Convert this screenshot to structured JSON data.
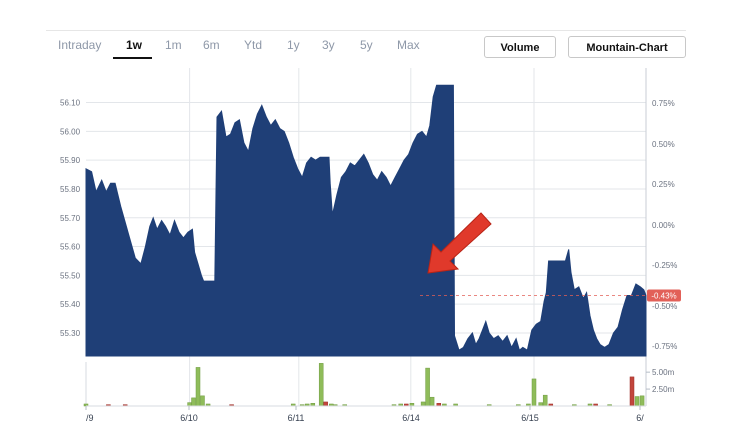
{
  "tabs": [
    {
      "label": "Intraday",
      "active": false
    },
    {
      "label": "1w",
      "active": true
    },
    {
      "label": "1m",
      "active": false
    },
    {
      "label": "6m",
      "active": false
    },
    {
      "label": "Ytd",
      "active": false
    },
    {
      "label": "1y",
      "active": false
    },
    {
      "label": "3y",
      "active": false
    },
    {
      "label": "5y",
      "active": false
    },
    {
      "label": "Max",
      "active": false
    }
  ],
  "buttons": {
    "volume_label": "Volume",
    "chart_type_label": "Mountain-Chart"
  },
  "colors": {
    "area_fill": "#1f3f77",
    "grid": "#e3e6ea",
    "volume_up": "#8fbc5a",
    "volume_down": "#c2453c",
    "arrow": "#e0392b",
    "current_badge": "#e26058"
  },
  "chart_data": {
    "type": "area",
    "price_axis": {
      "ticks": [
        "56.10",
        "56.00",
        "55.90",
        "55.80",
        "55.70",
        "55.60",
        "55.50",
        "55.40",
        "55.30"
      ],
      "ylim": [
        55.22,
        56.22
      ]
    },
    "percent_axis": {
      "ticks": [
        "0.75%",
        "0.50%",
        "0.25%",
        "0.00%",
        "-0.25%",
        "-0.50%",
        "-0.75%"
      ]
    },
    "volume_axis": {
      "ticks": [
        "5.00m",
        "2.50m"
      ],
      "ylim": [
        0,
        6.5
      ]
    },
    "x_labels": [
      "/9",
      "6/10",
      "6/11",
      "6/14",
      "6/15",
      "6/"
    ],
    "current_change_label": "-0.43%",
    "current_change_pct": -0.43,
    "series": [
      {
        "values": [
          [
            0.0,
            55.87
          ],
          [
            0.01,
            55.86
          ],
          [
            0.018,
            55.79
          ],
          [
            0.028,
            55.83
          ],
          [
            0.036,
            55.79
          ],
          [
            0.044,
            55.82
          ],
          [
            0.052,
            55.82
          ],
          [
            0.062,
            55.74
          ],
          [
            0.075,
            55.65
          ],
          [
            0.088,
            55.56
          ],
          [
            0.098,
            55.54
          ],
          [
            0.106,
            55.6
          ],
          [
            0.114,
            55.67
          ],
          [
            0.12,
            55.7
          ],
          [
            0.127,
            55.66
          ],
          [
            0.135,
            55.69
          ],
          [
            0.142,
            55.67
          ],
          [
            0.15,
            55.64
          ],
          [
            0.158,
            55.69
          ],
          [
            0.166,
            55.65
          ],
          [
            0.174,
            55.63
          ],
          [
            0.182,
            55.65
          ],
          [
            0.19,
            55.66
          ],
          [
            0.194,
            55.58
          ],
          [
            0.2,
            55.54
          ],
          [
            0.206,
            55.5
          ],
          [
            0.21,
            55.48
          ],
          [
            0.214,
            55.48
          ],
          [
            0.22,
            55.48
          ],
          [
            0.226,
            55.48
          ],
          [
            0.23,
            55.48
          ],
          [
            0.234,
            56.05
          ],
          [
            0.242,
            56.07
          ],
          [
            0.25,
            55.98
          ],
          [
            0.258,
            55.99
          ],
          [
            0.266,
            56.03
          ],
          [
            0.274,
            56.04
          ],
          [
            0.282,
            55.96
          ],
          [
            0.29,
            55.93
          ],
          [
            0.298,
            56.01
          ],
          [
            0.306,
            56.06
          ],
          [
            0.314,
            56.09
          ],
          [
            0.322,
            56.05
          ],
          [
            0.33,
            56.02
          ],
          [
            0.338,
            56.04
          ],
          [
            0.346,
            56.01
          ],
          [
            0.354,
            56.0
          ],
          [
            0.362,
            55.96
          ],
          [
            0.37,
            55.91
          ],
          [
            0.378,
            55.87
          ],
          [
            0.386,
            55.84
          ],
          [
            0.394,
            55.89
          ],
          [
            0.402,
            55.91
          ],
          [
            0.41,
            55.9
          ],
          [
            0.418,
            55.91
          ],
          [
            0.426,
            55.91
          ],
          [
            0.434,
            55.91
          ],
          [
            0.436,
            55.82
          ],
          [
            0.44,
            55.71
          ],
          [
            0.448,
            55.78
          ],
          [
            0.456,
            55.84
          ],
          [
            0.464,
            55.86
          ],
          [
            0.472,
            55.89
          ],
          [
            0.48,
            55.88
          ],
          [
            0.488,
            55.9
          ],
          [
            0.496,
            55.92
          ],
          [
            0.504,
            55.89
          ],
          [
            0.512,
            55.85
          ],
          [
            0.52,
            55.83
          ],
          [
            0.528,
            55.86
          ],
          [
            0.536,
            55.84
          ],
          [
            0.544,
            55.81
          ],
          [
            0.552,
            55.84
          ],
          [
            0.56,
            55.87
          ],
          [
            0.568,
            55.9
          ],
          [
            0.576,
            55.92
          ],
          [
            0.584,
            55.96
          ],
          [
            0.592,
            55.99
          ],
          [
            0.6,
            56.0
          ],
          [
            0.608,
            55.98
          ],
          [
            0.614,
            56.02
          ],
          [
            0.62,
            56.12
          ],
          [
            0.626,
            56.16
          ],
          [
            0.634,
            56.16
          ],
          [
            0.642,
            56.16
          ],
          [
            0.65,
            56.16
          ],
          [
            0.656,
            56.16
          ],
          [
            0.658,
            55.29
          ],
          [
            0.666,
            55.24
          ],
          [
            0.674,
            55.25
          ],
          [
            0.682,
            55.28
          ],
          [
            0.69,
            55.3
          ],
          [
            0.696,
            55.26
          ],
          [
            0.702,
            55.28
          ],
          [
            0.708,
            55.31
          ],
          [
            0.714,
            55.34
          ],
          [
            0.72,
            55.3
          ],
          [
            0.728,
            55.28
          ],
          [
            0.736,
            55.29
          ],
          [
            0.744,
            55.27
          ],
          [
            0.752,
            55.29
          ],
          [
            0.76,
            55.25
          ],
          [
            0.768,
            55.28
          ],
          [
            0.774,
            55.24
          ],
          [
            0.78,
            55.25
          ],
          [
            0.788,
            55.24
          ],
          [
            0.796,
            55.31
          ],
          [
            0.804,
            55.33
          ],
          [
            0.812,
            55.34
          ],
          [
            0.818,
            55.41
          ],
          [
            0.822,
            55.44
          ],
          [
            0.826,
            55.55
          ],
          [
            0.834,
            55.55
          ],
          [
            0.842,
            55.55
          ],
          [
            0.85,
            55.55
          ],
          [
            0.856,
            55.55
          ],
          [
            0.862,
            55.59
          ],
          [
            0.866,
            55.51
          ],
          [
            0.872,
            55.45
          ],
          [
            0.88,
            55.46
          ],
          [
            0.888,
            55.42
          ],
          [
            0.894,
            55.44
          ],
          [
            0.9,
            55.36
          ],
          [
            0.906,
            55.31
          ],
          [
            0.912,
            55.28
          ],
          [
            0.918,
            55.26
          ],
          [
            0.926,
            55.25
          ],
          [
            0.934,
            55.26
          ],
          [
            0.942,
            55.3
          ],
          [
            0.95,
            55.32
          ],
          [
            0.958,
            55.38
          ],
          [
            0.966,
            55.43
          ],
          [
            0.974,
            55.43
          ],
          [
            0.982,
            55.47
          ],
          [
            0.99,
            55.46
          ],
          [
            0.996,
            55.45
          ],
          [
            1.0,
            55.43
          ]
        ]
      }
    ],
    "volume": [
      {
        "x": 0.0,
        "v": 0.3,
        "up": true
      },
      {
        "x": 0.04,
        "v": 0.2,
        "up": false
      },
      {
        "x": 0.07,
        "v": 0.2,
        "up": false
      },
      {
        "x": 0.185,
        "v": 0.5,
        "up": true
      },
      {
        "x": 0.192,
        "v": 1.2,
        "up": true
      },
      {
        "x": 0.2,
        "v": 5.7,
        "up": true
      },
      {
        "x": 0.208,
        "v": 1.5,
        "up": true
      },
      {
        "x": 0.218,
        "v": 0.3,
        "up": true
      },
      {
        "x": 0.26,
        "v": 0.2,
        "up": false
      },
      {
        "x": 0.37,
        "v": 0.3,
        "up": true
      },
      {
        "x": 0.386,
        "v": 0.2,
        "up": true
      },
      {
        "x": 0.395,
        "v": 0.3,
        "up": true
      },
      {
        "x": 0.405,
        "v": 0.4,
        "up": true
      },
      {
        "x": 0.42,
        "v": 6.3,
        "up": true
      },
      {
        "x": 0.428,
        "v": 0.6,
        "up": false
      },
      {
        "x": 0.438,
        "v": 0.3,
        "up": true
      },
      {
        "x": 0.445,
        "v": 0.2,
        "up": true
      },
      {
        "x": 0.462,
        "v": 0.2,
        "up": true
      },
      {
        "x": 0.55,
        "v": 0.2,
        "up": true
      },
      {
        "x": 0.562,
        "v": 0.3,
        "up": true
      },
      {
        "x": 0.572,
        "v": 0.3,
        "up": false
      },
      {
        "x": 0.582,
        "v": 0.4,
        "up": true
      },
      {
        "x": 0.602,
        "v": 0.6,
        "up": true
      },
      {
        "x": 0.61,
        "v": 5.6,
        "up": true
      },
      {
        "x": 0.618,
        "v": 1.3,
        "up": true
      },
      {
        "x": 0.63,
        "v": 0.4,
        "up": false
      },
      {
        "x": 0.64,
        "v": 0.3,
        "up": true
      },
      {
        "x": 0.66,
        "v": 0.3,
        "up": true
      },
      {
        "x": 0.72,
        "v": 0.2,
        "up": true
      },
      {
        "x": 0.772,
        "v": 0.2,
        "up": true
      },
      {
        "x": 0.79,
        "v": 0.3,
        "up": true
      },
      {
        "x": 0.8,
        "v": 4.0,
        "up": true
      },
      {
        "x": 0.812,
        "v": 0.5,
        "up": true
      },
      {
        "x": 0.82,
        "v": 1.6,
        "up": true
      },
      {
        "x": 0.83,
        "v": 0.3,
        "up": false
      },
      {
        "x": 0.872,
        "v": 0.2,
        "up": true
      },
      {
        "x": 0.9,
        "v": 0.3,
        "up": true
      },
      {
        "x": 0.91,
        "v": 0.3,
        "up": false
      },
      {
        "x": 0.935,
        "v": 0.2,
        "up": true
      },
      {
        "x": 0.975,
        "v": 4.3,
        "up": false
      },
      {
        "x": 0.984,
        "v": 1.4,
        "up": true
      },
      {
        "x": 0.993,
        "v": 1.5,
        "up": true
      }
    ],
    "grid": true,
    "legend": "none"
  }
}
